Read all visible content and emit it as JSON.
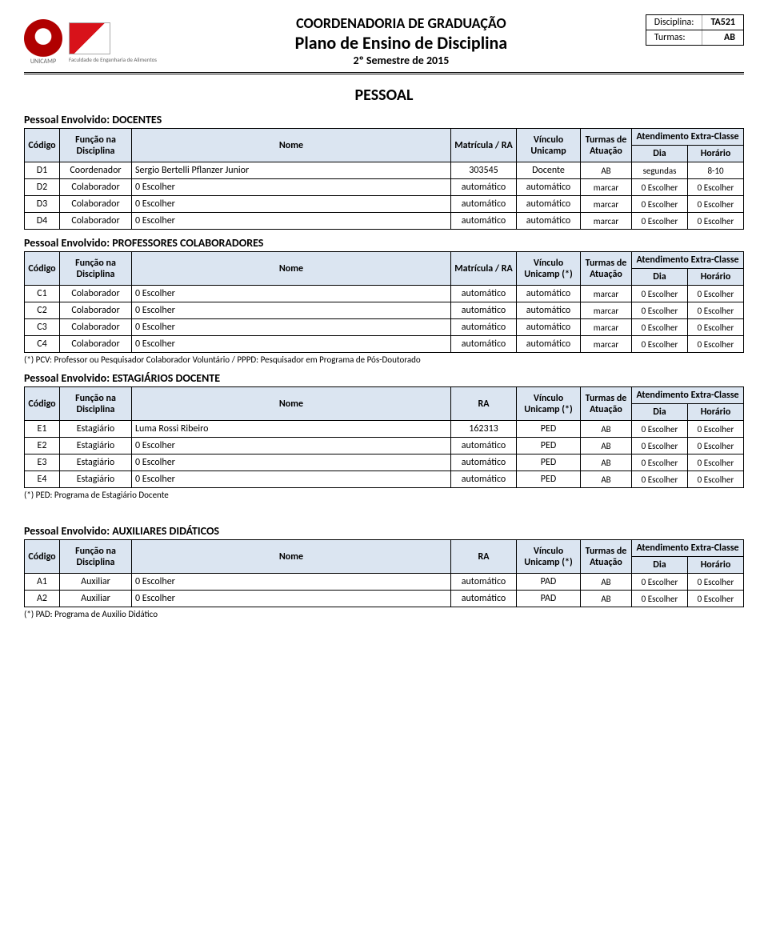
{
  "header": {
    "title1": "COORDENADORIA DE GRADUAÇÃO",
    "title2": "Plano de Ensino de Disciplina",
    "title3": "2º Semestre de 2015",
    "unicamp_label": "UNICAMP",
    "fea_label": "Faculdade de Engenharia de Alimentos",
    "meta": {
      "disciplina_label": "Disciplina:",
      "disciplina_value": "TA521",
      "turmas_label": "Turmas:",
      "turmas_value": "AB"
    }
  },
  "colors": {
    "header_bg": "#dbe5f1",
    "border": "#000000",
    "text": "#000000",
    "accent_red": "#b00000"
  },
  "labels": {
    "pessoal": "PESSOAL",
    "codigo": "Código",
    "funcao": "Função na Disciplina",
    "nome": "Nome",
    "matricula": "Matrícula / RA",
    "ra": "RA",
    "vinculo": "Vínculo Unicamp",
    "vinculo_star": "Vínculo Unicamp (*)",
    "turmas": "Turmas de Atuação",
    "atend": "Atendimento Extra-Classe",
    "dia": "Dia",
    "horario": "Horário"
  },
  "sections": {
    "docentes": {
      "title": "Pessoal Envolvido: DOCENTES",
      "rows": [
        {
          "codigo": "D1",
          "funcao": "Coordenador",
          "nome": "Sergio Bertelli Pflanzer Junior",
          "matricula": "303545",
          "vinculo": "Docente",
          "turmas": "AB",
          "dia": "segundas",
          "horario": "8-10"
        },
        {
          "codigo": "D2",
          "funcao": "Colaborador",
          "nome": "0 Escolher",
          "matricula": "automático",
          "vinculo": "automático",
          "turmas": "marcar",
          "dia": "0 Escolher",
          "horario": "0 Escolher"
        },
        {
          "codigo": "D3",
          "funcao": "Colaborador",
          "nome": "0 Escolher",
          "matricula": "automático",
          "vinculo": "automático",
          "turmas": "marcar",
          "dia": "0 Escolher",
          "horario": "0 Escolher"
        },
        {
          "codigo": "D4",
          "funcao": "Colaborador",
          "nome": "0 Escolher",
          "matricula": "automático",
          "vinculo": "automático",
          "turmas": "marcar",
          "dia": "0 Escolher",
          "horario": "0 Escolher"
        }
      ]
    },
    "professores": {
      "title": "Pessoal Envolvido: PROFESSORES COLABORADORES",
      "footnote": "(*) PCV: Professor ou Pesquisador Colaborador Voluntário  / PPPD: Pesquisador em Programa de Pós-Doutorado",
      "rows": [
        {
          "codigo": "C1",
          "funcao": "Colaborador",
          "nome": "0 Escolher",
          "matricula": "automático",
          "vinculo": "automático",
          "turmas": "marcar",
          "dia": "0 Escolher",
          "horario": "0 Escolher"
        },
        {
          "codigo": "C2",
          "funcao": "Colaborador",
          "nome": "0 Escolher",
          "matricula": "automático",
          "vinculo": "automático",
          "turmas": "marcar",
          "dia": "0 Escolher",
          "horario": "0 Escolher"
        },
        {
          "codigo": "C3",
          "funcao": "Colaborador",
          "nome": "0 Escolher",
          "matricula": "automático",
          "vinculo": "automático",
          "turmas": "marcar",
          "dia": "0 Escolher",
          "horario": "0 Escolher"
        },
        {
          "codigo": "C4",
          "funcao": "Colaborador",
          "nome": "0 Escolher",
          "matricula": "automático",
          "vinculo": "automático",
          "turmas": "marcar",
          "dia": "0 Escolher",
          "horario": "0 Escolher"
        }
      ]
    },
    "estagiarios": {
      "title": "Pessoal Envolvido: ESTAGIÁRIOS DOCENTE",
      "footnote": "(*) PED: Programa de Estagiário Docente",
      "rows": [
        {
          "codigo": "E1",
          "funcao": "Estagiário",
          "nome": "Luma Rossi Ribeiro",
          "matricula": "162313",
          "vinculo": "PED",
          "turmas": "AB",
          "dia": "0 Escolher",
          "horario": "0 Escolher"
        },
        {
          "codigo": "E2",
          "funcao": "Estagiário",
          "nome": "0 Escolher",
          "matricula": "automático",
          "vinculo": "PED",
          "turmas": "AB",
          "dia": "0 Escolher",
          "horario": "0 Escolher"
        },
        {
          "codigo": "E3",
          "funcao": "Estagiário",
          "nome": "0 Escolher",
          "matricula": "automático",
          "vinculo": "PED",
          "turmas": "AB",
          "dia": "0 Escolher",
          "horario": "0 Escolher"
        },
        {
          "codigo": "E4",
          "funcao": "Estagiário",
          "nome": "0 Escolher",
          "matricula": "automático",
          "vinculo": "PED",
          "turmas": "AB",
          "dia": "0 Escolher",
          "horario": "0 Escolher"
        }
      ]
    },
    "auxiliares": {
      "title": "Pessoal Envolvido: AUXILIARES DIDÁTICOS",
      "footnote": "(*) PAD: Programa de Auxilio Didático",
      "rows": [
        {
          "codigo": "A1",
          "funcao": "Auxiliar",
          "nome": "0 Escolher",
          "matricula": "automático",
          "vinculo": "PAD",
          "turmas": "AB",
          "dia": "0 Escolher",
          "horario": "0 Escolher"
        },
        {
          "codigo": "A2",
          "funcao": "Auxiliar",
          "nome": "0 Escolher",
          "matricula": "automático",
          "vinculo": "PAD",
          "turmas": "AB",
          "dia": "0 Escolher",
          "horario": "0 Escolher"
        }
      ]
    }
  }
}
